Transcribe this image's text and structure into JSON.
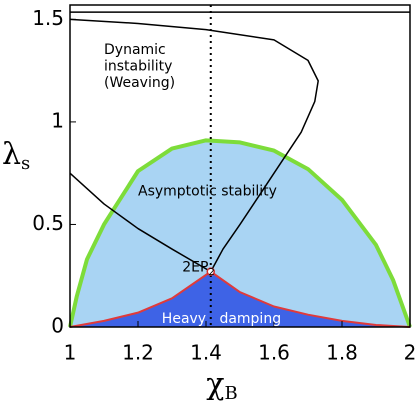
{
  "chart_data": {
    "type": "line",
    "xlabel": {
      "text": "χ",
      "subscript": "B"
    },
    "ylabel": {
      "text": "λ",
      "subscript": "s"
    },
    "xlim": [
      1,
      2
    ],
    "ylim": [
      0,
      1.57
    ],
    "xticks": [
      1,
      1.2,
      1.4,
      1.6,
      1.8,
      2
    ],
    "yticks": [
      0,
      0.5,
      1,
      1.5
    ],
    "series": [
      {
        "color": "#7ddc3a",
        "fill": "#a9d4f3",
        "width": 4,
        "x": [
          1,
          1.02,
          1.05,
          1.1,
          1.2,
          1.3,
          1.4,
          1.5,
          1.6,
          1.7,
          1.8,
          1.9,
          1.95,
          2
        ],
        "values": [
          0,
          0.15,
          0.33,
          0.5,
          0.76,
          0.87,
          0.91,
          0.9,
          0.86,
          0.77,
          0.62,
          0.4,
          0.23,
          0
        ]
      },
      {
        "color": "#e03a3a",
        "fill": "#3e63e6",
        "width": 2,
        "x": [
          1,
          1.1,
          1.2,
          1.3,
          1.414,
          1.5,
          1.6,
          1.7,
          1.8,
          1.9,
          2
        ],
        "values": [
          0,
          0.03,
          0.07,
          0.14,
          0.27,
          0.17,
          0.1,
          0.06,
          0.03,
          0.01,
          0
        ]
      },
      {
        "color": "#000000",
        "width": 1.5,
        "x": [
          1,
          1.1,
          1.2,
          1.3,
          1.414
        ],
        "values": [
          0.75,
          0.6,
          0.48,
          0.38,
          0.27
        ]
      },
      {
        "color": "#000000",
        "width": 1.5,
        "x": [
          1.414,
          1.45,
          1.5,
          1.6,
          1.68,
          1.72,
          1.73,
          1.7,
          1.6,
          1.4,
          1.2,
          1
        ],
        "values": [
          0.27,
          0.38,
          0.5,
          0.75,
          0.95,
          1.1,
          1.2,
          1.3,
          1.4,
          1.45,
          1.48,
          1.5
        ]
      },
      {
        "color": "#000000",
        "width": 1.5,
        "x": [
          1,
          2
        ],
        "values": [
          1.535,
          1.535
        ]
      }
    ],
    "vline": 1.414,
    "markers": {
      "x": [
        1.414
      ],
      "y": [
        0.27
      ]
    },
    "annotations": [
      {
        "text": "Dynamic",
        "x": 1.1,
        "y": 1.35
      },
      {
        "text": "instability",
        "x": 1.1,
        "y": 1.27
      },
      {
        "text": "(Weaving)",
        "x": 1.1,
        "y": 1.19
      },
      {
        "text": "Asymptotic stability",
        "x": 1.2,
        "y": 0.66
      },
      {
        "text": "2EP",
        "subscript": "2",
        "x": 1.33,
        "y": 0.29
      },
      {
        "text": "Heavy   damping",
        "x": 1.27,
        "y": 0.04,
        "color": "#ffffff"
      }
    ]
  }
}
